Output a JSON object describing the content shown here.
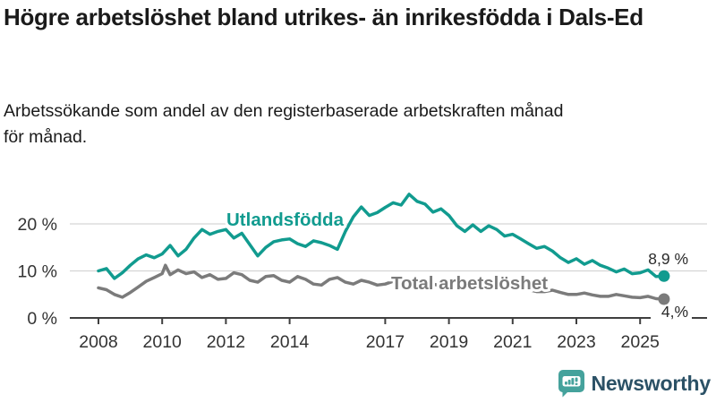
{
  "header": {
    "title": "Högre arbetslöshet bland utrikes- än inrikesfödda i Dals-Ed",
    "subtitle": "Arbetssökande som andel av den registerbaserade arbetskraften månad för månad."
  },
  "chart_data": {
    "type": "line",
    "title": "Högre arbetslöshet bland utrikes- än inrikesfödda i Dals-Ed",
    "xlabel": "",
    "ylabel": "Arbetssökande som andel av den registerbaserade arbetskraften",
    "xlim": [
      2007.9,
      2026.3
    ],
    "ylim": [
      0,
      27
    ],
    "grid": "horizontal",
    "legend_position": "inline-labels",
    "y_ticks": [
      {
        "value": 0,
        "label": "0 %"
      },
      {
        "value": 10,
        "label": "10 %"
      },
      {
        "value": 20,
        "label": "20 %"
      }
    ],
    "x_ticks": [
      {
        "value": 2008,
        "label": "2008"
      },
      {
        "value": 2010,
        "label": "2010"
      },
      {
        "value": 2012,
        "label": "2012"
      },
      {
        "value": 2014,
        "label": "2014"
      },
      {
        "value": 2017,
        "label": "2017"
      },
      {
        "value": 2019,
        "label": "2019"
      },
      {
        "value": 2021,
        "label": "2021"
      },
      {
        "value": 2023,
        "label": "2023"
      },
      {
        "value": 2025,
        "label": "2025"
      }
    ],
    "colors": {
      "grid": "#d5d5d5",
      "axis": "#3f3f3f",
      "tick_text": "#333333",
      "annotation": "#2a2a2a"
    },
    "series": [
      {
        "name": "Utlandsfödda",
        "color": "#119b8f",
        "end_label": "8,9 %",
        "end_value": 8.9,
        "points": [
          [
            2008.0,
            10.0
          ],
          [
            2008.25,
            10.5
          ],
          [
            2008.5,
            8.4
          ],
          [
            2008.75,
            9.6
          ],
          [
            2009.0,
            11.2
          ],
          [
            2009.25,
            12.6
          ],
          [
            2009.5,
            13.4
          ],
          [
            2009.75,
            12.8
          ],
          [
            2010.0,
            13.6
          ],
          [
            2010.25,
            15.4
          ],
          [
            2010.5,
            13.2
          ],
          [
            2010.75,
            14.6
          ],
          [
            2011.0,
            17.0
          ],
          [
            2011.25,
            18.8
          ],
          [
            2011.5,
            17.8
          ],
          [
            2011.75,
            18.4
          ],
          [
            2012.0,
            18.8
          ],
          [
            2012.25,
            17.0
          ],
          [
            2012.5,
            18.0
          ],
          [
            2012.75,
            15.6
          ],
          [
            2013.0,
            13.2
          ],
          [
            2013.25,
            15.0
          ],
          [
            2013.5,
            16.2
          ],
          [
            2013.75,
            16.6
          ],
          [
            2014.0,
            16.8
          ],
          [
            2014.25,
            15.8
          ],
          [
            2014.5,
            15.2
          ],
          [
            2014.75,
            16.4
          ],
          [
            2015.0,
            16.0
          ],
          [
            2015.25,
            15.4
          ],
          [
            2015.5,
            14.6
          ],
          [
            2015.75,
            18.4
          ],
          [
            2016.0,
            21.5
          ],
          [
            2016.25,
            23.6
          ],
          [
            2016.5,
            21.8
          ],
          [
            2016.75,
            22.4
          ],
          [
            2017.0,
            23.5
          ],
          [
            2017.25,
            24.5
          ],
          [
            2017.5,
            24.0
          ],
          [
            2017.75,
            26.3
          ],
          [
            2018.0,
            24.8
          ],
          [
            2018.25,
            24.2
          ],
          [
            2018.5,
            22.5
          ],
          [
            2018.75,
            23.2
          ],
          [
            2019.0,
            21.8
          ],
          [
            2019.25,
            19.6
          ],
          [
            2019.5,
            18.4
          ],
          [
            2019.75,
            19.8
          ],
          [
            2020.0,
            18.4
          ],
          [
            2020.25,
            19.6
          ],
          [
            2020.5,
            18.8
          ],
          [
            2020.75,
            17.4
          ],
          [
            2021.0,
            17.8
          ],
          [
            2021.25,
            16.8
          ],
          [
            2021.5,
            15.8
          ],
          [
            2021.75,
            14.8
          ],
          [
            2022.0,
            15.2
          ],
          [
            2022.25,
            14.2
          ],
          [
            2022.5,
            12.8
          ],
          [
            2022.75,
            11.8
          ],
          [
            2023.0,
            12.6
          ],
          [
            2023.25,
            11.4
          ],
          [
            2023.5,
            12.2
          ],
          [
            2023.75,
            11.2
          ],
          [
            2024.0,
            10.6
          ],
          [
            2024.25,
            9.8
          ],
          [
            2024.5,
            10.4
          ],
          [
            2024.75,
            9.4
          ],
          [
            2025.0,
            9.6
          ],
          [
            2025.25,
            10.2
          ],
          [
            2025.5,
            8.8
          ],
          [
            2025.75,
            8.9
          ]
        ]
      },
      {
        "name": "Total arbetslöshet",
        "color": "#7b7b7b",
        "end_label": "4,%",
        "end_value": 4.0,
        "points": [
          [
            2008.0,
            6.4
          ],
          [
            2008.25,
            6.0
          ],
          [
            2008.5,
            5.0
          ],
          [
            2008.75,
            4.4
          ],
          [
            2009.0,
            5.4
          ],
          [
            2009.25,
            6.6
          ],
          [
            2009.5,
            7.8
          ],
          [
            2009.75,
            8.6
          ],
          [
            2010.0,
            9.4
          ],
          [
            2010.1,
            11.2
          ],
          [
            2010.25,
            9.2
          ],
          [
            2010.5,
            10.2
          ],
          [
            2010.75,
            9.4
          ],
          [
            2011.0,
            9.8
          ],
          [
            2011.25,
            8.6
          ],
          [
            2011.5,
            9.2
          ],
          [
            2011.75,
            8.2
          ],
          [
            2012.0,
            8.4
          ],
          [
            2012.25,
            9.6
          ],
          [
            2012.5,
            9.2
          ],
          [
            2012.75,
            8.0
          ],
          [
            2013.0,
            7.6
          ],
          [
            2013.25,
            8.8
          ],
          [
            2013.5,
            9.0
          ],
          [
            2013.75,
            8.0
          ],
          [
            2014.0,
            7.6
          ],
          [
            2014.25,
            8.8
          ],
          [
            2014.5,
            8.2
          ],
          [
            2014.75,
            7.2
          ],
          [
            2015.0,
            7.0
          ],
          [
            2015.25,
            8.2
          ],
          [
            2015.5,
            8.6
          ],
          [
            2015.75,
            7.6
          ],
          [
            2016.0,
            7.2
          ],
          [
            2016.25,
            8.0
          ],
          [
            2016.5,
            7.6
          ],
          [
            2016.75,
            7.0
          ],
          [
            2017.0,
            7.2
          ],
          [
            2017.25,
            7.8
          ],
          [
            2017.5,
            7.4
          ],
          [
            2017.75,
            7.0
          ],
          [
            2018.0,
            7.2
          ],
          [
            2018.25,
            7.6
          ],
          [
            2018.5,
            7.2
          ],
          [
            2018.75,
            6.8
          ],
          [
            2019.0,
            6.8
          ],
          [
            2019.25,
            7.2
          ],
          [
            2019.5,
            6.8
          ],
          [
            2019.75,
            6.4
          ],
          [
            2020.0,
            6.4
          ],
          [
            2020.25,
            7.2
          ],
          [
            2020.5,
            6.8
          ],
          [
            2020.75,
            6.4
          ],
          [
            2021.0,
            6.4
          ],
          [
            2021.25,
            6.6
          ],
          [
            2021.5,
            6.0
          ],
          [
            2021.75,
            5.6
          ],
          [
            2022.0,
            5.6
          ],
          [
            2022.25,
            5.9
          ],
          [
            2022.5,
            5.4
          ],
          [
            2022.75,
            5.0
          ],
          [
            2023.0,
            5.0
          ],
          [
            2023.25,
            5.3
          ],
          [
            2023.5,
            4.9
          ],
          [
            2023.75,
            4.6
          ],
          [
            2024.0,
            4.6
          ],
          [
            2024.25,
            5.0
          ],
          [
            2024.5,
            4.7
          ],
          [
            2024.75,
            4.4
          ],
          [
            2025.0,
            4.3
          ],
          [
            2025.25,
            4.6
          ],
          [
            2025.5,
            4.1
          ],
          [
            2025.75,
            4.0
          ]
        ]
      }
    ]
  },
  "footer": {
    "brand": "Newsworthy",
    "logo_icon": "speech-bubble-bar-chart-icon",
    "logo_icon_color": "#45a29c",
    "brand_text_color": "#2b5166"
  }
}
